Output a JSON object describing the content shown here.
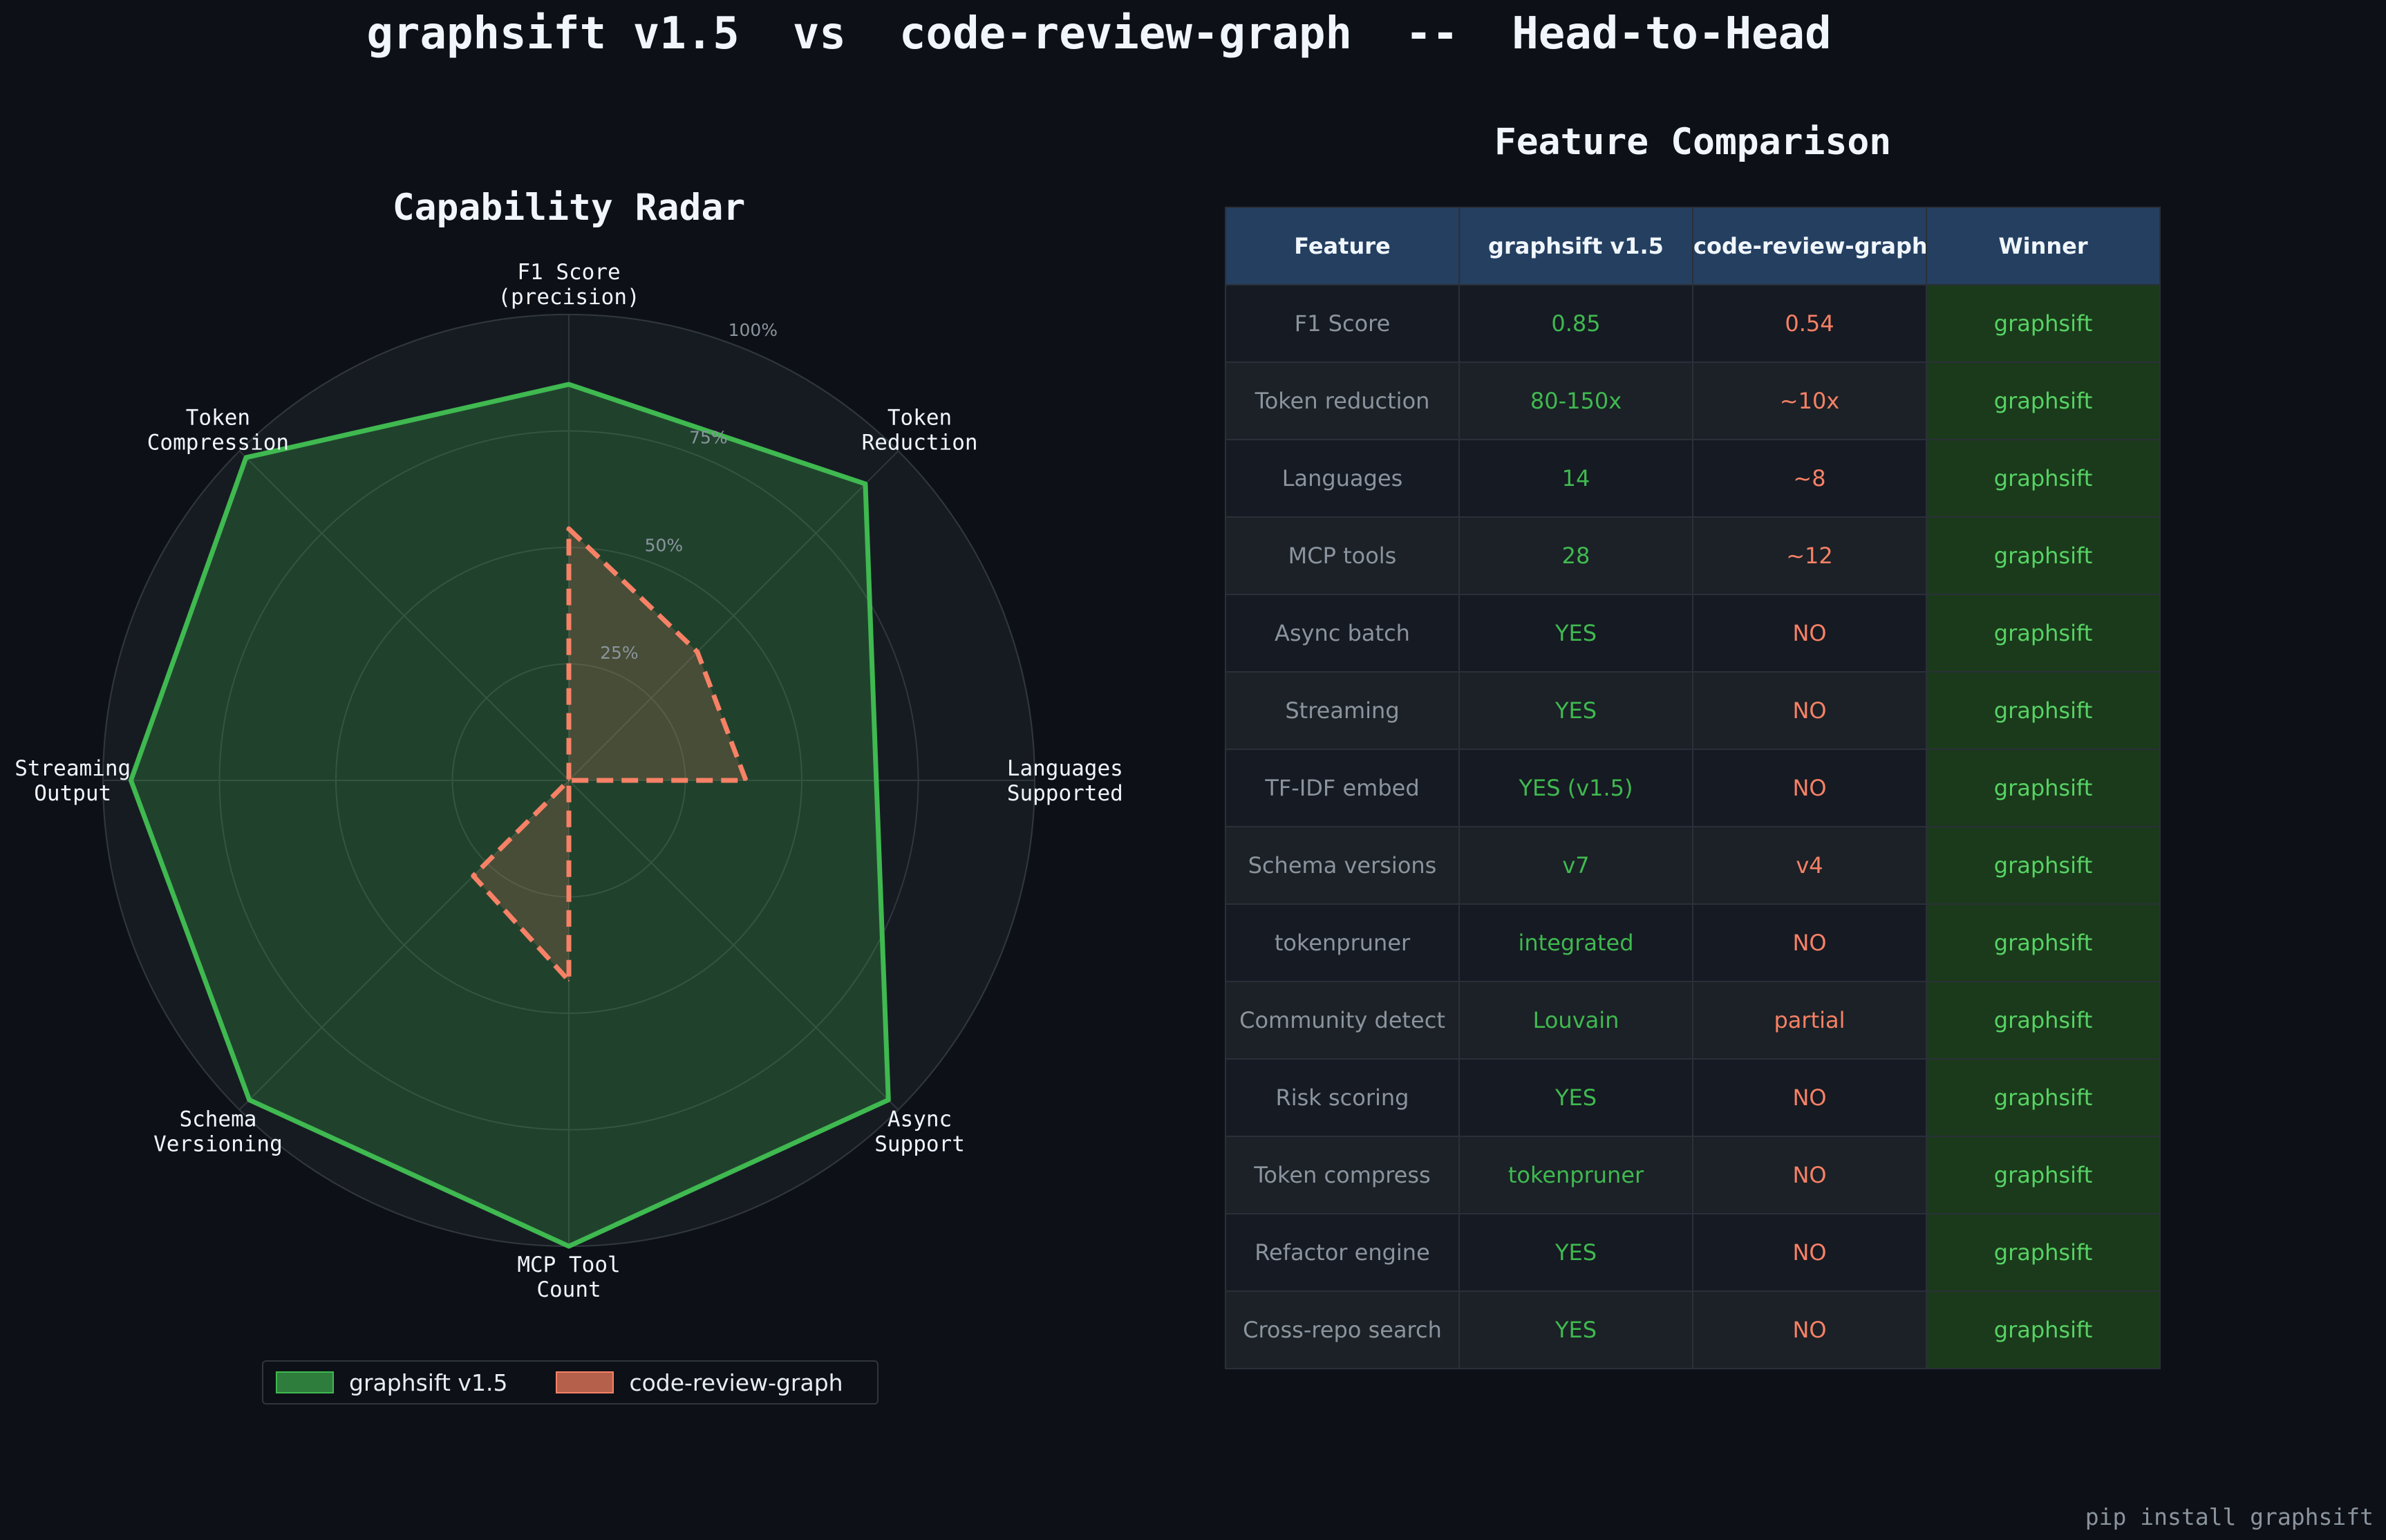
{
  "title": "graphsift v1.5  vs  code-review-graph  --  Head-to-Head",
  "footer": "pip install graphsift",
  "colors": {
    "background": "#0d1117",
    "graphsift": "#3fb950",
    "code_review_graph": "#f78166",
    "header": "#243f60",
    "winner_cell": "#1b3a1b"
  },
  "chart_data": {
    "type": "radar",
    "title": "Capability Radar",
    "axes": [
      "F1 Score\n(precision)",
      "Token\nReduction",
      "Languages\nSupported",
      "Async\nSupport",
      "MCP Tool\nCount",
      "Schema\nVersioning",
      "Streaming\nOutput",
      "Token\nCompression"
    ],
    "rlim": [
      0,
      1
    ],
    "r_ticks": [
      0.25,
      0.5,
      0.75,
      1.0
    ],
    "r_tick_labels": [
      "25%",
      "50%",
      "75%",
      "100%"
    ],
    "grid": true,
    "legend_position": "bottom",
    "series": [
      {
        "name": "graphsift v1.5",
        "color": "#3fb950",
        "line": "solid",
        "values": [
          0.85,
          0.9,
          0.66,
          0.97,
          1.0,
          0.97,
          0.94,
          0.98
        ]
      },
      {
        "name": "code-review-graph",
        "color": "#f78166",
        "line": "dashed",
        "values": [
          0.54,
          0.39,
          0.38,
          0.0,
          0.43,
          0.29,
          0.0,
          0.0
        ]
      }
    ]
  },
  "table": {
    "title": "Feature Comparison",
    "headers": [
      "Feature",
      "graphsift v1.5",
      "code-review-graph",
      "Winner"
    ],
    "rows": [
      [
        "F1 Score",
        "0.85",
        "0.54",
        "graphsift"
      ],
      [
        "Token reduction",
        "80-150x",
        "~10x",
        "graphsift"
      ],
      [
        "Languages",
        "14",
        "~8",
        "graphsift"
      ],
      [
        "MCP tools",
        "28",
        "~12",
        "graphsift"
      ],
      [
        "Async batch",
        "YES",
        "NO",
        "graphsift"
      ],
      [
        "Streaming",
        "YES",
        "NO",
        "graphsift"
      ],
      [
        "TF-IDF embed",
        "YES (v1.5)",
        "NO",
        "graphsift"
      ],
      [
        "Schema versions",
        "v7",
        "v4",
        "graphsift"
      ],
      [
        "tokenpruner",
        "integrated",
        "NO",
        "graphsift"
      ],
      [
        "Community detect",
        "Louvain",
        "partial",
        "graphsift"
      ],
      [
        "Risk scoring",
        "YES",
        "NO",
        "graphsift"
      ],
      [
        "Token compress",
        "tokenpruner",
        "NO",
        "graphsift"
      ],
      [
        "Refactor engine",
        "YES",
        "NO",
        "graphsift"
      ],
      [
        "Cross-repo search",
        "YES",
        "NO",
        "graphsift"
      ]
    ]
  }
}
